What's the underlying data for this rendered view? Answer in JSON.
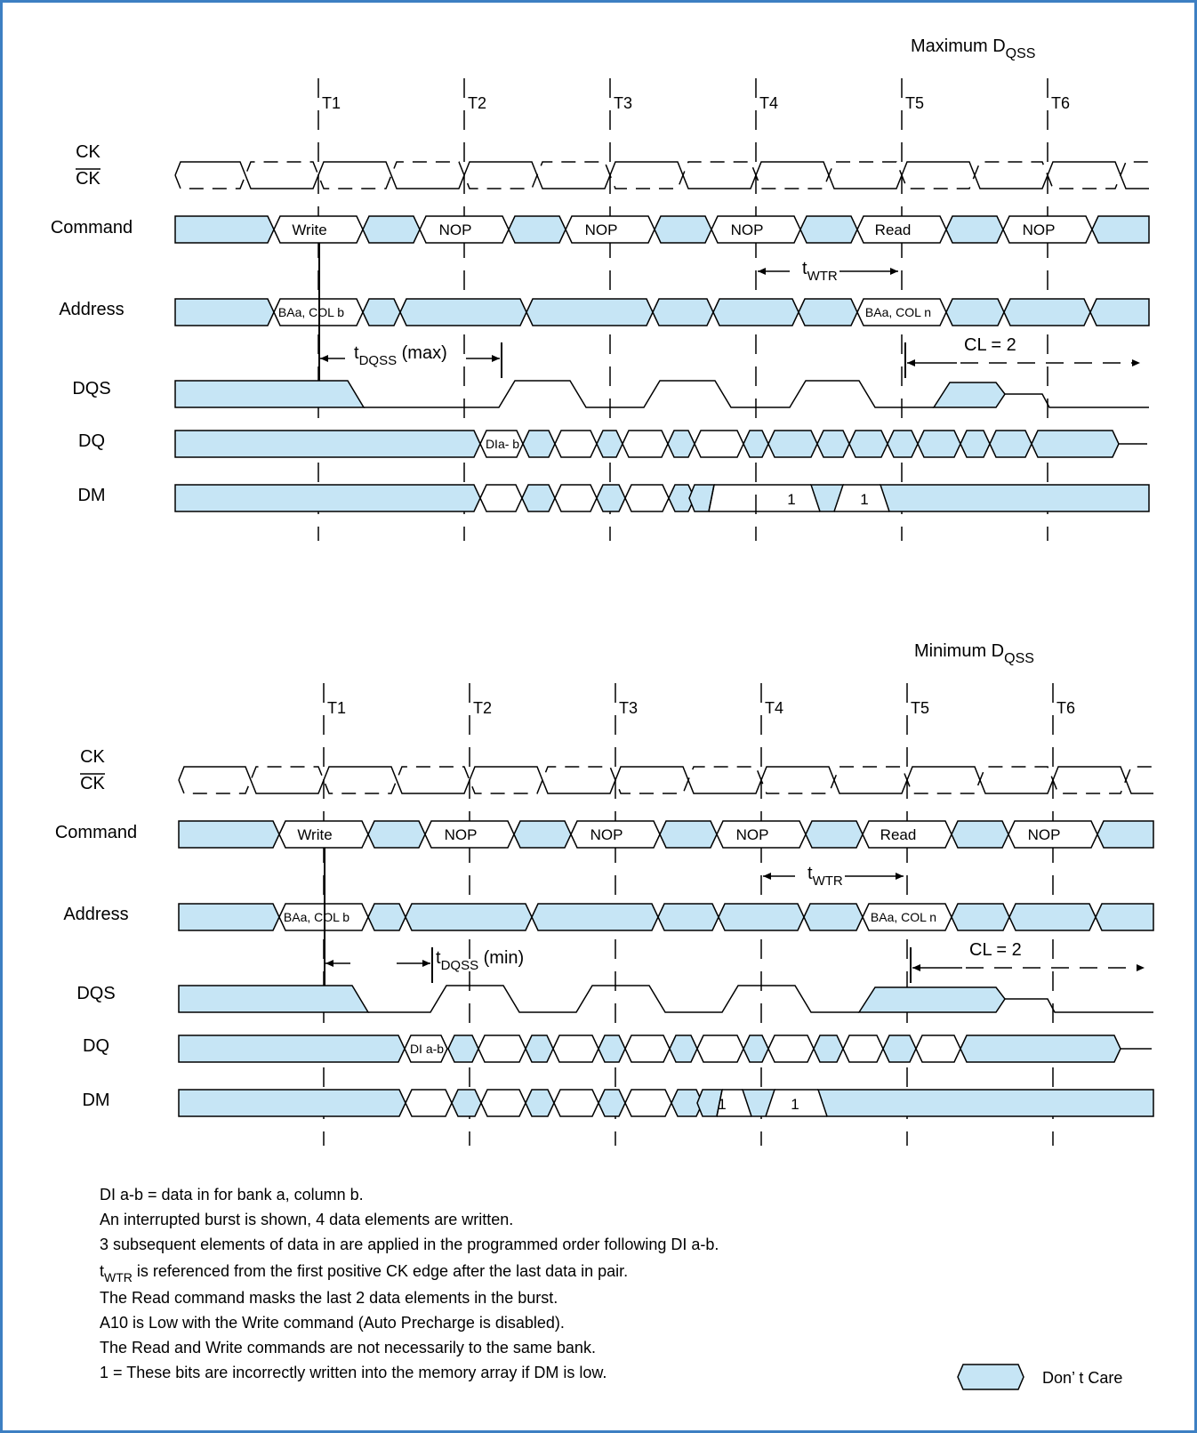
{
  "colors": {
    "dont_care_fill": "#c6e5f5",
    "frame": "#3d7fc2",
    "line": "#000000"
  },
  "panels": [
    {
      "id": "max",
      "title_main": "Maximum D",
      "title_sub": "QSS",
      "clocks": [
        "T1",
        "T2",
        "T3",
        "T4",
        "T5",
        "T6"
      ],
      "signals": {
        "ck": "CK",
        "ck_bar": "CK",
        "command": "Command",
        "address": "Address",
        "dqs": "DQS",
        "dq": "DQ",
        "dm": "DM"
      },
      "commands": [
        "Write",
        "NOP",
        "NOP",
        "NOP",
        "Read",
        "NOP"
      ],
      "addresses": [
        "BAa, COL b",
        "BAa, COL n"
      ],
      "dq_label": "DIa- b",
      "dm_marks": [
        "1",
        "1"
      ],
      "twtr_main": "t",
      "twtr_sub": "WTR",
      "tdqss_main": "t",
      "tdqss_sub": "DQSS",
      "tdqss_suffix": "(max)",
      "cl": "CL = 2"
    },
    {
      "id": "min",
      "title_main": "Minimum D",
      "title_sub": "QSS",
      "clocks": [
        "T1",
        "T2",
        "T3",
        "T4",
        "T5",
        "T6"
      ],
      "signals": {
        "ck": "CK",
        "ck_bar": "CK",
        "command": "Command",
        "address": "Address",
        "dqs": "DQS",
        "dq": "DQ",
        "dm": "DM"
      },
      "commands": [
        "Write",
        "NOP",
        "NOP",
        "NOP",
        "Read",
        "NOP"
      ],
      "addresses": [
        "BAa, COL b",
        "BAa, COL n"
      ],
      "dq_label": "DI a-b",
      "dm_marks": [
        "1",
        "1"
      ],
      "twtr_main": "t",
      "twtr_sub": "WTR",
      "tdqss_main": "t",
      "tdqss_sub": "DQSS",
      "tdqss_suffix": "(min)",
      "cl": "CL = 2"
    }
  ],
  "notes": [
    "DI a-b = data in for bank a, column b.",
    "An interrupted burst is shown, 4 data elements are written.",
    "3 subsequent elements of data in are applied in the programmed order following DI a-b.",
    {
      "main": "t",
      "sub": "WTR",
      "rest": " is referenced from the first positive CK edge after the last data in pair."
    },
    "The Read command masks the last 2 data elements in the burst.",
    "A10 is Low with the Write command (Auto Precharge is disabled).",
    "The Read and Write commands are not necessarily to the same bank.",
    "1 = These bits are incorrectly written into the memory array if DM is low."
  ],
  "legend": {
    "label": "Don’ t Care"
  }
}
